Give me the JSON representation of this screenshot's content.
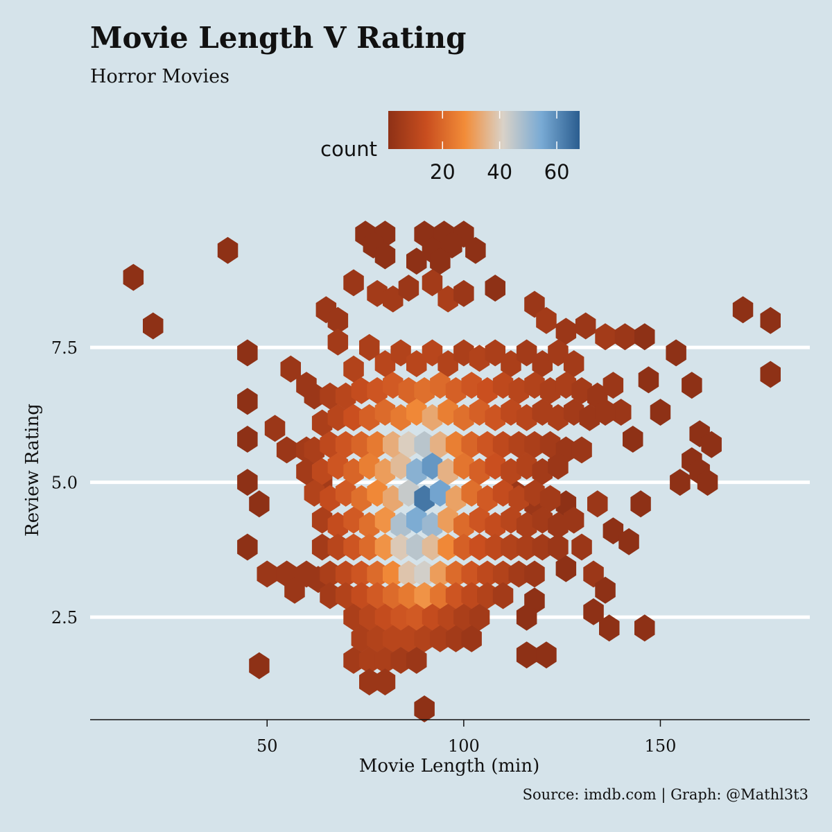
{
  "chart_data": {
    "type": "heatmap",
    "subtype": "hexbin",
    "title": "Movie Length V Rating",
    "subtitle": "Horror Movies",
    "caption": "Source: imdb.com | Graph: @Mathl3t3",
    "xlabel": "Movie Length (min)",
    "ylabel": "Review Rating",
    "xlim": [
      5,
      188
    ],
    "ylim": [
      0.6,
      9.7
    ],
    "x_ticks": [
      50,
      100,
      150
    ],
    "y_ticks": [
      2.5,
      5.0,
      7.5
    ],
    "y_tick_labels": [
      "2.5",
      "5.0",
      "7.5"
    ],
    "grid": "horizontal major lines at y ticks (white)",
    "legend": {
      "title": "count",
      "position": "top",
      "ticks": [
        20,
        40,
        60
      ],
      "range": [
        1,
        68
      ],
      "colors": [
        "#8e3116",
        "#c94e1f",
        "#f28c38",
        "#d9d2c8",
        "#79aad4",
        "#2a5d8f"
      ]
    },
    "hex_size": {
      "x": 2.6,
      "y": 0.25
    },
    "bins": [
      [
        16,
        8.8,
        1
      ],
      [
        40,
        9.3,
        1
      ],
      [
        21,
        7.9,
        1
      ],
      [
        48,
        1.6,
        1
      ],
      [
        90,
        0.8,
        1
      ],
      [
        45,
        3.8,
        1
      ],
      [
        48,
        4.6,
        1
      ],
      [
        45,
        7.4,
        1
      ],
      [
        45,
        6.5,
        1
      ],
      [
        45,
        5.8,
        1
      ],
      [
        45,
        5.0,
        1
      ],
      [
        75,
        9.6,
        1
      ],
      [
        80,
        9.6,
        1
      ],
      [
        77,
        9.4,
        1
      ],
      [
        80,
        9.2,
        1
      ],
      [
        90,
        9.6,
        1
      ],
      [
        95,
        9.6,
        1
      ],
      [
        100,
        9.6,
        1
      ],
      [
        92,
        9.3,
        1
      ],
      [
        97,
        9.4,
        1
      ],
      [
        103,
        9.3,
        1
      ],
      [
        88,
        9.1,
        1
      ],
      [
        94,
        9.1,
        1
      ],
      [
        72,
        8.7,
        2
      ],
      [
        78,
        8.5,
        3
      ],
      [
        82,
        8.4,
        3
      ],
      [
        86,
        8.6,
        2
      ],
      [
        92,
        8.7,
        3
      ],
      [
        96,
        8.4,
        4
      ],
      [
        100,
        8.5,
        2
      ],
      [
        108,
        8.6,
        1
      ],
      [
        65,
        8.2,
        2
      ],
      [
        68,
        8.0,
        2
      ],
      [
        118,
        8.3,
        2
      ],
      [
        121,
        8.0,
        3
      ],
      [
        126,
        7.8,
        2
      ],
      [
        131,
        7.9,
        2
      ],
      [
        136,
        7.7,
        3
      ],
      [
        141,
        7.7,
        2
      ],
      [
        146,
        7.7,
        1
      ],
      [
        154,
        7.4,
        1
      ],
      [
        158,
        6.8,
        1
      ],
      [
        171,
        8.2,
        1
      ],
      [
        178,
        8.0,
        1
      ],
      [
        178,
        7.0,
        1
      ],
      [
        147,
        6.9,
        1
      ],
      [
        150,
        6.3,
        1
      ],
      [
        140,
        6.3,
        2
      ],
      [
        143,
        5.8,
        1
      ],
      [
        160,
        5.9,
        1
      ],
      [
        163,
        5.7,
        1
      ],
      [
        158,
        5.4,
        1
      ],
      [
        155,
        5.0,
        1
      ],
      [
        160,
        5.2,
        1
      ],
      [
        162,
        5.0,
        1
      ],
      [
        145,
        4.6,
        1
      ],
      [
        113,
        4.8,
        2
      ],
      [
        118,
        4.6,
        2
      ],
      [
        126,
        4.6,
        1
      ],
      [
        128,
        4.3,
        2
      ],
      [
        134,
        4.6,
        2
      ],
      [
        138,
        4.1,
        1
      ],
      [
        142,
        3.9,
        1
      ],
      [
        130,
        3.8,
        2
      ],
      [
        126,
        3.4,
        1
      ],
      [
        133,
        3.3,
        2
      ],
      [
        136,
        3.0,
        1
      ],
      [
        118,
        2.8,
        1
      ],
      [
        116,
        2.5,
        1
      ],
      [
        133,
        2.6,
        1
      ],
      [
        137,
        2.3,
        1
      ],
      [
        146,
        2.3,
        1
      ],
      [
        116,
        1.8,
        1
      ],
      [
        121,
        1.8,
        1
      ],
      [
        52,
        6.0,
        2
      ],
      [
        55,
        5.6,
        2
      ],
      [
        50,
        3.3,
        2
      ],
      [
        55,
        3.3,
        2
      ],
      [
        60,
        3.3,
        2
      ],
      [
        63,
        3.2,
        2
      ],
      [
        57,
        3.0,
        2
      ],
      [
        60,
        5.6,
        3
      ],
      [
        64,
        5.0,
        3
      ],
      [
        62,
        6.6,
        2
      ],
      [
        60,
        6.8,
        2
      ],
      [
        56,
        7.1,
        2
      ],
      [
        68,
        7.6,
        3
      ],
      [
        72,
        7.1,
        5
      ],
      [
        76,
        7.5,
        4
      ],
      [
        80,
        7.2,
        6
      ],
      [
        84,
        7.4,
        5
      ],
      [
        88,
        7.2,
        6
      ],
      [
        92,
        7.4,
        6
      ],
      [
        96,
        7.2,
        5
      ],
      [
        100,
        7.4,
        4
      ],
      [
        104,
        7.3,
        5
      ],
      [
        108,
        7.4,
        4
      ],
      [
        112,
        7.2,
        4
      ],
      [
        116,
        7.4,
        3
      ],
      [
        120,
        7.2,
        3
      ],
      [
        124,
        7.4,
        3
      ],
      [
        128,
        7.2,
        3
      ],
      [
        66,
        6.6,
        4
      ],
      [
        70,
        6.6,
        6
      ],
      [
        74,
        6.7,
        8
      ],
      [
        78,
        6.7,
        10
      ],
      [
        82,
        6.8,
        11
      ],
      [
        86,
        6.7,
        13
      ],
      [
        90,
        6.7,
        15
      ],
      [
        94,
        6.8,
        14
      ],
      [
        98,
        6.7,
        12
      ],
      [
        102,
        6.8,
        10
      ],
      [
        106,
        6.7,
        9
      ],
      [
        110,
        6.8,
        7
      ],
      [
        114,
        6.7,
        6
      ],
      [
        118,
        6.8,
        5
      ],
      [
        122,
        6.7,
        4
      ],
      [
        126,
        6.8,
        4
      ],
      [
        130,
        6.7,
        3
      ],
      [
        134,
        6.6,
        2
      ],
      [
        138,
        6.8,
        2
      ],
      [
        64,
        6.1,
        4
      ],
      [
        68,
        6.2,
        6
      ],
      [
        72,
        6.2,
        9
      ],
      [
        76,
        6.2,
        12
      ],
      [
        80,
        6.3,
        14
      ],
      [
        84,
        6.2,
        17
      ],
      [
        88,
        6.3,
        20
      ],
      [
        92,
        6.2,
        26
      ],
      [
        96,
        6.3,
        18
      ],
      [
        100,
        6.2,
        15
      ],
      [
        104,
        6.3,
        12
      ],
      [
        108,
        6.2,
        10
      ],
      [
        112,
        6.3,
        7
      ],
      [
        116,
        6.2,
        6
      ],
      [
        120,
        6.3,
        4
      ],
      [
        124,
        6.2,
        4
      ],
      [
        128,
        6.3,
        3
      ],
      [
        132,
        6.2,
        2
      ],
      [
        136,
        6.3,
        2
      ],
      [
        62,
        5.6,
        4
      ],
      [
        66,
        5.7,
        7
      ],
      [
        70,
        5.7,
        10
      ],
      [
        74,
        5.7,
        13
      ],
      [
        78,
        5.7,
        17
      ],
      [
        82,
        5.7,
        27
      ],
      [
        86,
        5.7,
        34
      ],
      [
        90,
        5.7,
        40
      ],
      [
        94,
        5.7,
        28
      ],
      [
        98,
        5.7,
        18
      ],
      [
        102,
        5.7,
        13
      ],
      [
        106,
        5.7,
        10
      ],
      [
        110,
        5.7,
        7
      ],
      [
        114,
        5.7,
        5
      ],
      [
        118,
        5.7,
        4
      ],
      [
        122,
        5.7,
        3
      ],
      [
        126,
        5.6,
        2
      ],
      [
        130,
        5.6,
        2
      ],
      [
        60,
        5.2,
        3
      ],
      [
        64,
        5.2,
        7
      ],
      [
        68,
        5.3,
        10
      ],
      [
        72,
        5.2,
        13
      ],
      [
        76,
        5.3,
        18
      ],
      [
        80,
        5.2,
        24
      ],
      [
        84,
        5.3,
        30
      ],
      [
        88,
        5.2,
        48
      ],
      [
        92,
        5.3,
        55
      ],
      [
        96,
        5.2,
        28
      ],
      [
        100,
        5.3,
        16
      ],
      [
        104,
        5.2,
        12
      ],
      [
        108,
        5.3,
        9
      ],
      [
        112,
        5.2,
        6
      ],
      [
        116,
        5.3,
        5
      ],
      [
        120,
        5.2,
        3
      ],
      [
        124,
        5.3,
        2
      ],
      [
        62,
        4.8,
        5
      ],
      [
        66,
        4.7,
        8
      ],
      [
        70,
        4.8,
        11
      ],
      [
        74,
        4.7,
        15
      ],
      [
        78,
        4.8,
        20
      ],
      [
        82,
        4.7,
        26
      ],
      [
        86,
        4.8,
        38
      ],
      [
        90,
        4.7,
        62
      ],
      [
        94,
        4.8,
        52
      ],
      [
        98,
        4.7,
        25
      ],
      [
        102,
        4.8,
        15
      ],
      [
        106,
        4.7,
        11
      ],
      [
        110,
        4.8,
        8
      ],
      [
        114,
        4.7,
        6
      ],
      [
        118,
        4.8,
        4
      ],
      [
        122,
        4.7,
        3
      ],
      [
        64,
        4.3,
        4
      ],
      [
        68,
        4.2,
        8
      ],
      [
        72,
        4.3,
        11
      ],
      [
        76,
        4.2,
        15
      ],
      [
        80,
        4.3,
        22
      ],
      [
        84,
        4.2,
        42
      ],
      [
        88,
        4.3,
        50
      ],
      [
        92,
        4.2,
        45
      ],
      [
        96,
        4.3,
        24
      ],
      [
        100,
        4.2,
        14
      ],
      [
        104,
        4.3,
        10
      ],
      [
        108,
        4.2,
        8
      ],
      [
        112,
        4.3,
        6
      ],
      [
        116,
        4.2,
        4
      ],
      [
        120,
        4.3,
        3
      ],
      [
        124,
        4.2,
        2
      ],
      [
        64,
        3.8,
        3
      ],
      [
        68,
        3.8,
        6
      ],
      [
        72,
        3.8,
        10
      ],
      [
        76,
        3.8,
        14
      ],
      [
        80,
        3.8,
        22
      ],
      [
        84,
        3.8,
        33
      ],
      [
        88,
        3.8,
        40
      ],
      [
        92,
        3.8,
        30
      ],
      [
        96,
        3.8,
        20
      ],
      [
        100,
        3.8,
        12
      ],
      [
        104,
        3.8,
        9
      ],
      [
        108,
        3.8,
        7
      ],
      [
        112,
        3.8,
        5
      ],
      [
        116,
        3.8,
        4
      ],
      [
        120,
        3.8,
        3
      ],
      [
        124,
        3.8,
        2
      ],
      [
        66,
        3.3,
        4
      ],
      [
        70,
        3.3,
        7
      ],
      [
        74,
        3.3,
        10
      ],
      [
        78,
        3.3,
        14
      ],
      [
        82,
        3.3,
        20
      ],
      [
        86,
        3.3,
        32
      ],
      [
        90,
        3.3,
        36
      ],
      [
        94,
        3.3,
        24
      ],
      [
        98,
        3.3,
        14
      ],
      [
        102,
        3.3,
        10
      ],
      [
        106,
        3.3,
        7
      ],
      [
        110,
        3.3,
        5
      ],
      [
        114,
        3.3,
        3
      ],
      [
        118,
        3.3,
        2
      ],
      [
        66,
        2.9,
        3
      ],
      [
        70,
        2.9,
        5
      ],
      [
        74,
        2.9,
        8
      ],
      [
        78,
        2.9,
        11
      ],
      [
        82,
        2.9,
        14
      ],
      [
        86,
        2.9,
        17
      ],
      [
        90,
        2.9,
        22
      ],
      [
        94,
        2.9,
        16
      ],
      [
        98,
        2.9,
        10
      ],
      [
        102,
        2.9,
        7
      ],
      [
        106,
        2.9,
        5
      ],
      [
        110,
        2.9,
        3
      ],
      [
        72,
        2.5,
        4
      ],
      [
        76,
        2.5,
        6
      ],
      [
        80,
        2.5,
        8
      ],
      [
        84,
        2.5,
        10
      ],
      [
        88,
        2.5,
        11
      ],
      [
        92,
        2.5,
        8
      ],
      [
        96,
        2.5,
        6
      ],
      [
        100,
        2.5,
        4
      ],
      [
        104,
        2.5,
        3
      ],
      [
        74,
        2.1,
        4
      ],
      [
        78,
        2.1,
        5
      ],
      [
        82,
        2.1,
        6
      ],
      [
        86,
        2.1,
        6
      ],
      [
        90,
        2.1,
        5
      ],
      [
        94,
        2.1,
        4
      ],
      [
        98,
        2.1,
        3
      ],
      [
        102,
        2.1,
        2
      ],
      [
        72,
        1.7,
        3
      ],
      [
        76,
        1.7,
        4
      ],
      [
        80,
        1.7,
        4
      ],
      [
        84,
        1.7,
        3
      ],
      [
        88,
        1.7,
        2
      ],
      [
        76,
        1.3,
        2
      ],
      [
        80,
        1.3,
        2
      ]
    ]
  }
}
